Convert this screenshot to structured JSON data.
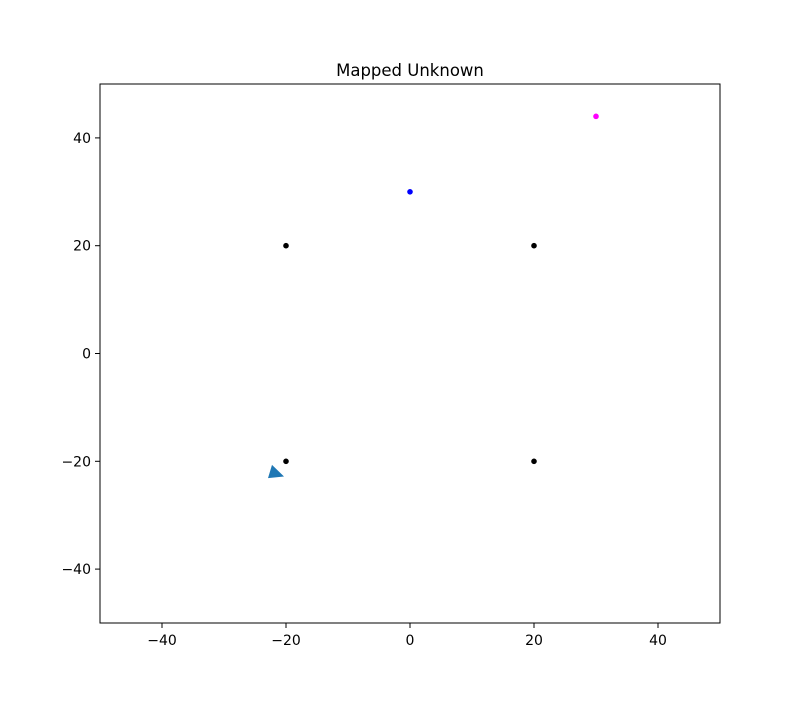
{
  "chart_data": {
    "type": "scatter",
    "title": "Mapped Unknown",
    "xlabel": "",
    "ylabel": "",
    "xlim": [
      -50,
      50
    ],
    "ylim": [
      -50,
      50
    ],
    "xticks": [
      -40,
      -20,
      0,
      20,
      40
    ],
    "yticks": [
      -40,
      -20,
      0,
      20,
      40
    ],
    "xtick_labels": [
      "−40",
      "−20",
      "0",
      "20",
      "40"
    ],
    "ytick_labels": [
      "−40",
      "−20",
      "0",
      "20",
      "40"
    ],
    "grid": false,
    "points": [
      {
        "x": -20,
        "y": 20,
        "color": "#000000"
      },
      {
        "x": 20,
        "y": 20,
        "color": "#000000"
      },
      {
        "x": -20,
        "y": -20,
        "color": "#000000"
      },
      {
        "x": 20,
        "y": -20,
        "color": "#000000"
      },
      {
        "x": 0,
        "y": 30,
        "color": "#0000ff"
      },
      {
        "x": 30,
        "y": 44,
        "color": "#ff00ff"
      }
    ],
    "marker": {
      "x": -22,
      "y": -22,
      "shape": "triangle",
      "heading": "east",
      "color": "#1f77b4"
    }
  }
}
